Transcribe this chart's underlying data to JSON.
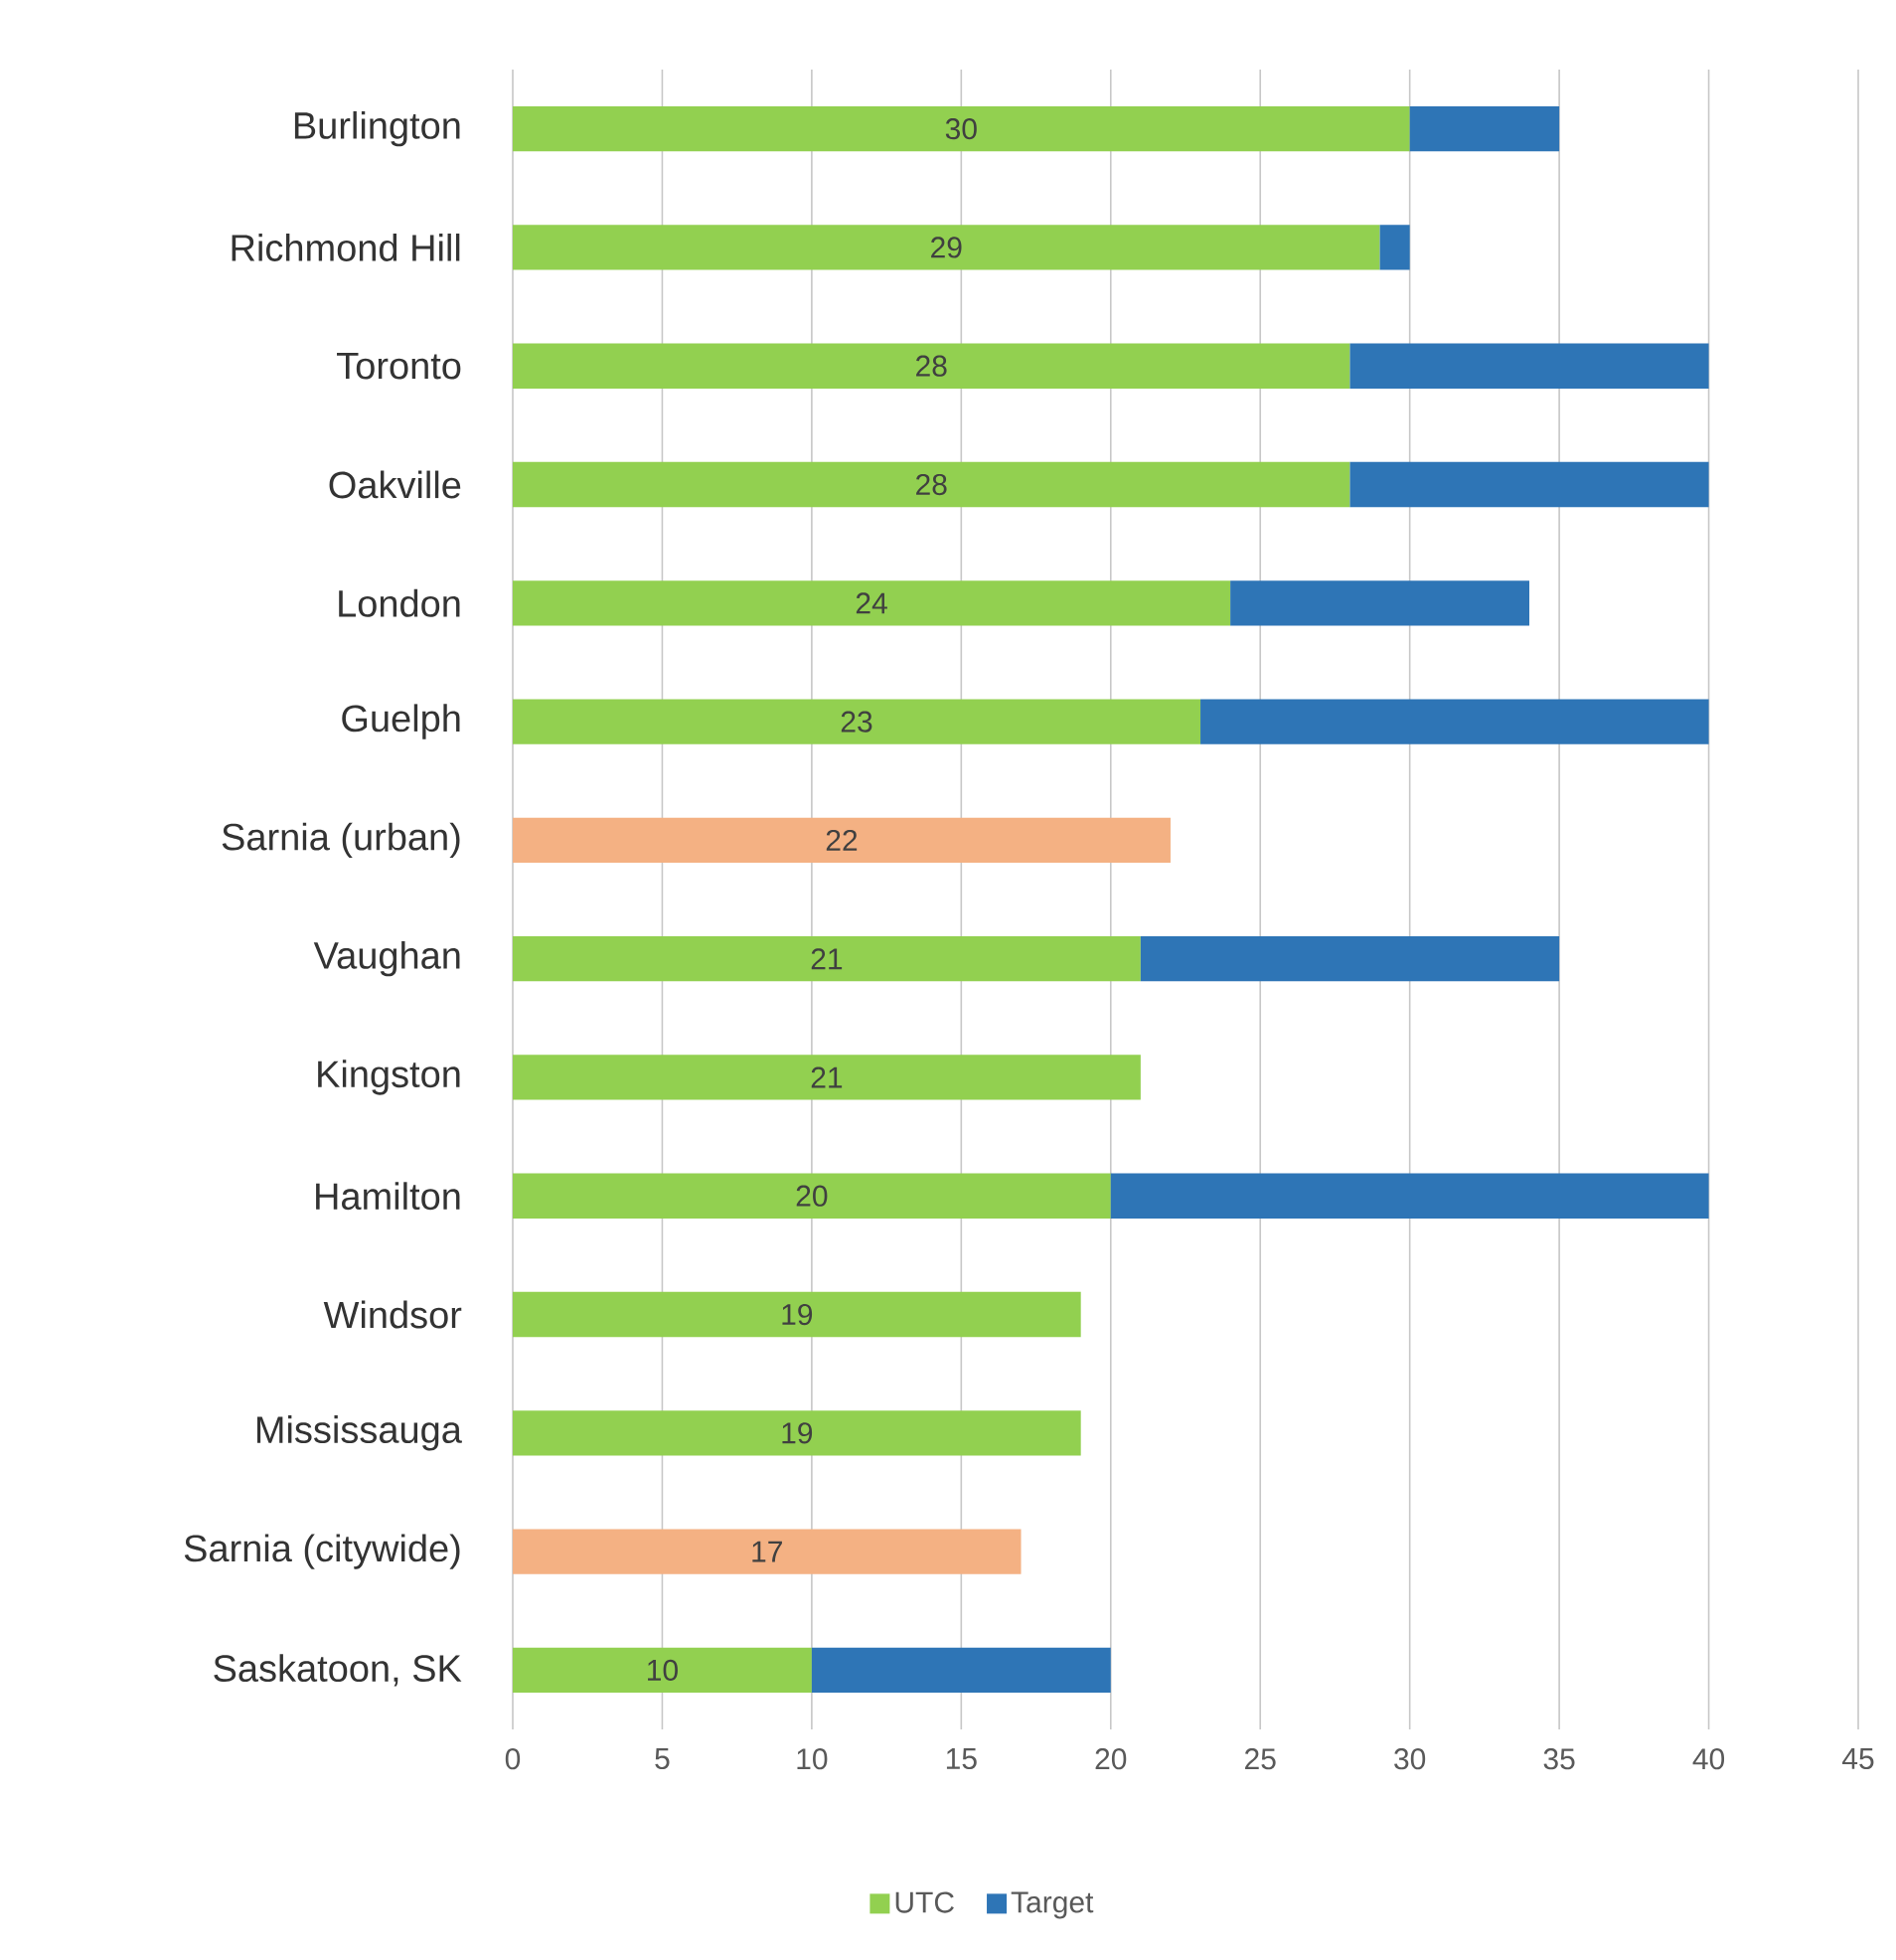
{
  "chart_data": {
    "type": "bar",
    "orientation": "horizontal",
    "stacked": true,
    "categories": [
      "Burlington",
      "Richmond Hill",
      "Toronto",
      "Oakville",
      "London",
      "Guelph",
      "Sarnia (urban)",
      "Vaughan",
      "Kingston",
      "Hamilton",
      "Windsor",
      "Mississauga",
      "Sarnia (citywide)",
      "Saskatoon, SK"
    ],
    "series": [
      {
        "name": "UTC",
        "color": "#92d050",
        "colors": [
          "#92d050",
          "#92d050",
          "#92d050",
          "#92d050",
          "#92d050",
          "#92d050",
          "#f4b183",
          "#92d050",
          "#92d050",
          "#92d050",
          "#92d050",
          "#92d050",
          "#f4b183",
          "#92d050"
        ],
        "values": [
          30,
          29,
          28,
          28,
          24,
          23,
          22,
          21,
          21,
          20,
          19,
          19,
          17,
          10
        ],
        "value_labels": [
          "30",
          "29",
          "28",
          "28",
          "24",
          "23",
          "22",
          "21",
          "21",
          "20",
          "19",
          "19",
          "17",
          "10"
        ]
      },
      {
        "name": "Target",
        "color": "#2e75b6",
        "values": [
          5,
          1,
          12,
          12,
          10,
          17,
          null,
          14,
          null,
          20,
          null,
          null,
          null,
          10
        ]
      }
    ],
    "xlim": [
      0,
      45
    ],
    "xticks": [
      0,
      5,
      10,
      15,
      20,
      25,
      30,
      35,
      40,
      45
    ],
    "grid": "x",
    "legend": "bottom"
  }
}
